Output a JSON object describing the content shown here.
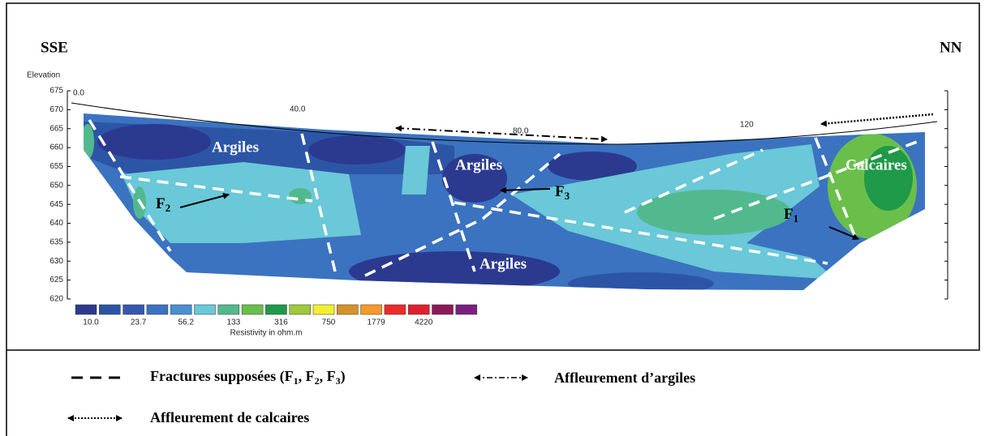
{
  "header": {
    "left": "SSE",
    "right": "NN"
  },
  "axis": {
    "title": "Elevation",
    "y_ticks": [
      "675",
      "670",
      "665",
      "660",
      "655",
      "650",
      "645",
      "640",
      "635",
      "630",
      "625",
      "620"
    ],
    "x_ticks": [
      "0.0",
      "40.0",
      "80.0",
      "120"
    ]
  },
  "section_labels": [
    {
      "text": "Argiles"
    },
    {
      "text": "Argiles"
    },
    {
      "text": "Argiles"
    },
    {
      "text": "Calcaires"
    }
  ],
  "fracture_labels": [
    {
      "letter": "F",
      "sub": "2"
    },
    {
      "letter": "F",
      "sub": "3"
    },
    {
      "letter": "F",
      "sub": "1"
    }
  ],
  "colorbar": {
    "labels": [
      "10.0",
      "23.7",
      "56.2",
      "133",
      "316",
      "750",
      "1779",
      "4220"
    ],
    "title": "Resistivity in ohm.m"
  },
  "legend": [
    {
      "parts": [
        "Fractures supposées (F",
        "1",
        ", F",
        "2",
        ", F",
        "3",
        ")"
      ]
    },
    {
      "parts": [
        "Affleurement d’argiles"
      ]
    },
    {
      "parts": [
        "Affleurement de calcaires"
      ]
    }
  ]
}
